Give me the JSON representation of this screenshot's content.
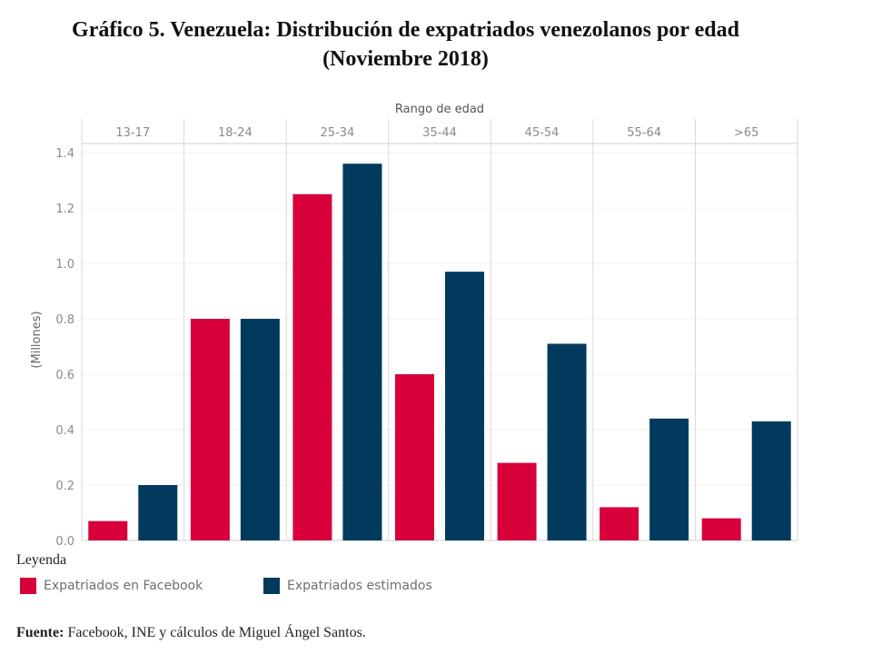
{
  "title": {
    "line1": "Gráfico 5. Venezuela: Distribución de expatriados venezolanos por edad",
    "line2": "(Noviembre 2018)"
  },
  "legend": {
    "title": "Leyenda",
    "items": [
      {
        "label": "Expatriados en Facebook",
        "color": "#d7003a"
      },
      {
        "label": "Expatriados estimados",
        "color": "#023a5e"
      }
    ]
  },
  "source": {
    "prefix": "Fuente:",
    "text": " Facebook, INE y cálculos de Miguel Ángel Santos."
  },
  "chart_data": {
    "type": "bar",
    "title": "Gráfico 5. Venezuela: Distribución de expatriados venezolanos por edad (Noviembre 2018)",
    "xlabel": "Rango de edad",
    "ylabel": "(Millones)",
    "categories": [
      "13-17",
      "18-24",
      "25-34",
      "35-44",
      "45-54",
      "55-64",
      ">65"
    ],
    "series": [
      {
        "name": "Expatriados en Facebook",
        "color": "#d7003a",
        "values": [
          0.07,
          0.8,
          1.25,
          0.6,
          0.28,
          0.12,
          0.08
        ]
      },
      {
        "name": "Expatriados estimados",
        "color": "#023a5e",
        "values": [
          0.2,
          0.8,
          1.36,
          0.97,
          0.71,
          0.44,
          0.43
        ]
      }
    ],
    "ylim": [
      0,
      1.4
    ],
    "yticks": [
      "0.0",
      "0.2",
      "0.4",
      "0.6",
      "0.8",
      "1.0",
      "1.2",
      "1.4"
    ],
    "grid": true,
    "legend_position": "bottom-left"
  }
}
